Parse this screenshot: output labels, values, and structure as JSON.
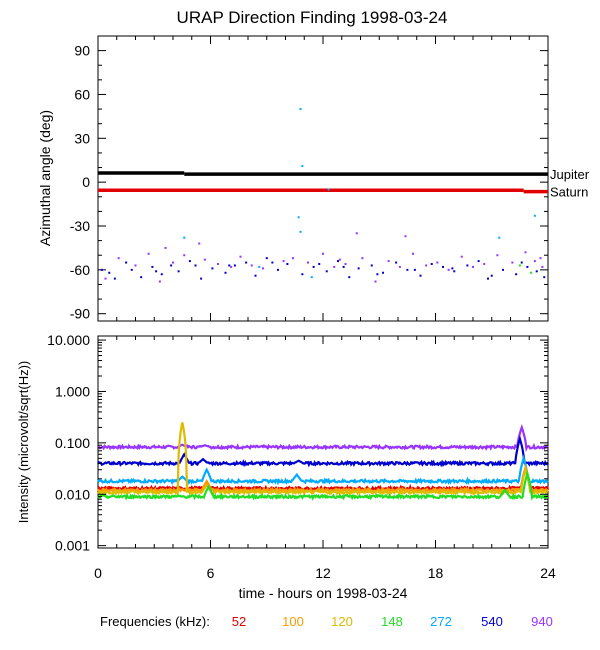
{
  "title": "URAP Direction Finding  1998-03-24",
  "freq_legend": {
    "label": "Frequencies (kHz):",
    "items": [
      {
        "name": "52",
        "color": "#e00000"
      },
      {
        "name": "100",
        "color": "#ff9900"
      },
      {
        "name": "120",
        "color": "#ddbb00"
      },
      {
        "name": "148",
        "color": "#22dd22"
      },
      {
        "name": "272",
        "color": "#00aaff"
      },
      {
        "name": "540",
        "color": "#0000cc"
      },
      {
        "name": "940",
        "color": "#9933ff"
      }
    ]
  },
  "chart_data": [
    {
      "type": "scatter",
      "name": "azimuth-panel",
      "ylabel": "Azimuthal angle (deg)",
      "xlim": [
        0,
        24
      ],
      "ylim": [
        -95,
        100
      ],
      "yticks": [
        90,
        60,
        30,
        0,
        -30,
        -60,
        -90
      ],
      "ytick_labels": [
        "90",
        "60",
        "30",
        "0",
        "-30",
        "-60",
        "-90"
      ],
      "reference_lines": [
        {
          "name": "Jupiter",
          "color": "#000000",
          "segments": [
            [
              0,
              4.6,
              6.3
            ],
            [
              4.6,
              24,
              5.5
            ]
          ]
        },
        {
          "name": "Saturn",
          "color": "#e00000",
          "segments": [
            [
              0,
              22.7,
              -5.5
            ],
            [
              22.7,
              24,
              -6.5
            ]
          ]
        }
      ],
      "series": [
        {
          "name": "540",
          "color": "#0000cc",
          "points": [
            [
              0.2,
              -60
            ],
            [
              0.6,
              -62
            ],
            [
              1.5,
              -55
            ],
            [
              1.8,
              -60
            ],
            [
              2.3,
              -65
            ],
            [
              2.9,
              -58
            ],
            [
              3.4,
              -63
            ],
            [
              3.9,
              -57
            ],
            [
              4.3,
              -61
            ],
            [
              4.9,
              -54
            ],
            [
              5.5,
              -66
            ],
            [
              6.1,
              -59
            ],
            [
              6.8,
              -62
            ],
            [
              7.3,
              -57
            ],
            [
              7.9,
              -55
            ],
            [
              8.4,
              -64
            ],
            [
              9.0,
              -52
            ],
            [
              9.6,
              -60
            ],
            [
              10.1,
              -56
            ],
            [
              10.9,
              -63
            ],
            [
              11.5,
              -58
            ],
            [
              12.2,
              -61
            ],
            [
              12.8,
              -54
            ],
            [
              13.4,
              -65
            ],
            [
              13.9,
              -59
            ],
            [
              14.6,
              -57
            ],
            [
              15.2,
              -62
            ],
            [
              15.9,
              -55
            ],
            [
              16.5,
              -60
            ],
            [
              17.2,
              -64
            ],
            [
              17.8,
              -56
            ],
            [
              18.4,
              -58
            ],
            [
              19.0,
              -61
            ],
            [
              19.7,
              -57
            ],
            [
              20.3,
              -54
            ],
            [
              21.0,
              -64
            ],
            [
              21.6,
              -60
            ],
            [
              22.3,
              -63
            ],
            [
              22.9,
              -58
            ],
            [
              23.4,
              -61
            ],
            [
              23.8,
              -65
            ],
            [
              5.2,
              -57
            ],
            [
              9.3,
              -55
            ],
            [
              13.1,
              -58
            ],
            [
              16.9,
              -60
            ],
            [
              20.8,
              -66
            ],
            [
              3.1,
              -61
            ],
            [
              11.8,
              -56
            ],
            [
              18.9,
              -59
            ],
            [
              22.6,
              -55
            ],
            [
              0.9,
              -66
            ],
            [
              7.0,
              -57
            ],
            [
              14.9,
              -63
            ]
          ]
        },
        {
          "name": "940",
          "color": "#9933ff",
          "points": [
            [
              0.4,
              -66
            ],
            [
              1.1,
              -52
            ],
            [
              2.0,
              -57
            ],
            [
              2.7,
              -49
            ],
            [
              3.3,
              -68
            ],
            [
              4.0,
              -55
            ],
            [
              4.6,
              -50
            ],
            [
              5.7,
              -53
            ],
            [
              6.4,
              -56
            ],
            [
              7.1,
              -58
            ],
            [
              7.6,
              -51
            ],
            [
              8.2,
              -57
            ],
            [
              8.8,
              -59
            ],
            [
              9.9,
              -54
            ],
            [
              10.4,
              -52
            ],
            [
              11.2,
              -55
            ],
            [
              12.0,
              -49
            ],
            [
              12.6,
              -58
            ],
            [
              13.2,
              -56
            ],
            [
              14.1,
              -52
            ],
            [
              14.8,
              -68
            ],
            [
              15.5,
              -54
            ],
            [
              16.1,
              -58
            ],
            [
              16.8,
              -49
            ],
            [
              17.5,
              -57
            ],
            [
              18.1,
              -55
            ],
            [
              18.7,
              -60
            ],
            [
              19.4,
              -51
            ],
            [
              20.0,
              -58
            ],
            [
              20.6,
              -56
            ],
            [
              21.3,
              -50
            ],
            [
              22.1,
              -55
            ],
            [
              22.8,
              -48
            ],
            [
              23.3,
              -54
            ],
            [
              23.7,
              -58
            ],
            [
              3.6,
              -45
            ],
            [
              5.4,
              -42
            ],
            [
              13.8,
              -35
            ],
            [
              16.4,
              -37
            ],
            [
              23.6,
              -52
            ],
            [
              12.9,
              -53
            ]
          ]
        },
        {
          "name": "272",
          "color": "#00aaff",
          "points": [
            [
              10.8,
              50
            ],
            [
              10.9,
              11
            ],
            [
              10.7,
              -24
            ],
            [
              10.8,
              -34
            ],
            [
              4.6,
              -38
            ],
            [
              23.3,
              -23
            ],
            [
              21.4,
              -38
            ],
            [
              11.4,
              -65
            ],
            [
              8.6,
              -58
            ],
            [
              12.3,
              -5
            ]
          ]
        },
        {
          "name": "148",
          "color": "#22dd22",
          "points": [
            [
              22.5,
              -57
            ],
            [
              23.1,
              -62
            ]
          ]
        }
      ]
    },
    {
      "type": "line",
      "name": "intensity-panel",
      "ylabel": "Intensity (microvolt/sqrt(Hz))",
      "xlabel": "time - hours on 1998-03-24",
      "yscale": "log",
      "xlim": [
        0,
        24
      ],
      "ylim": [
        0.0009,
        12
      ],
      "xticks": [
        0,
        6,
        12,
        18,
        24
      ],
      "xtick_labels": [
        "0",
        "6",
        "12",
        "18",
        "24"
      ],
      "yticks": [
        10,
        1,
        0.1,
        0.01,
        0.001
      ],
      "ytick_labels": [
        "10.000",
        "1.000",
        "0.100",
        "0.010",
        "0.001"
      ],
      "series": [
        {
          "name": "940",
          "color": "#9933ff",
          "base": 0.083,
          "spikes": [
            [
              4.5,
              0.092
            ],
            [
              5.7,
              0.09
            ],
            [
              22.6,
              0.2
            ]
          ]
        },
        {
          "name": "540",
          "color": "#0000cc",
          "base": 0.04,
          "spikes": [
            [
              4.6,
              0.06
            ],
            [
              5.6,
              0.048
            ],
            [
              10.7,
              0.045
            ],
            [
              22.5,
              0.12
            ]
          ]
        },
        {
          "name": "272",
          "color": "#00aaff",
          "base": 0.018,
          "spikes": [
            [
              4.5,
              0.022
            ],
            [
              5.8,
              0.03
            ],
            [
              10.6,
              0.024
            ],
            [
              22.7,
              0.05
            ]
          ]
        },
        {
          "name": "52",
          "color": "#e00000",
          "base": 0.013,
          "spikes": [
            [
              5.8,
              0.016
            ],
            [
              22.8,
              0.03
            ]
          ]
        },
        {
          "name": "100",
          "color": "#ff9900",
          "base": 0.012,
          "spikes": [
            [
              5.8,
              0.018
            ],
            [
              22.8,
              0.033
            ]
          ]
        },
        {
          "name": "120",
          "color": "#ddbb00",
          "base": 0.011,
          "spikes": [
            [
              4.5,
              0.25
            ],
            [
              5.8,
              0.015
            ],
            [
              22.8,
              0.03
            ]
          ]
        },
        {
          "name": "148",
          "color": "#22dd22",
          "base": 0.009,
          "spikes": [
            [
              5.9,
              0.014
            ],
            [
              21.7,
              0.012
            ],
            [
              22.9,
              0.025
            ]
          ]
        }
      ]
    }
  ]
}
